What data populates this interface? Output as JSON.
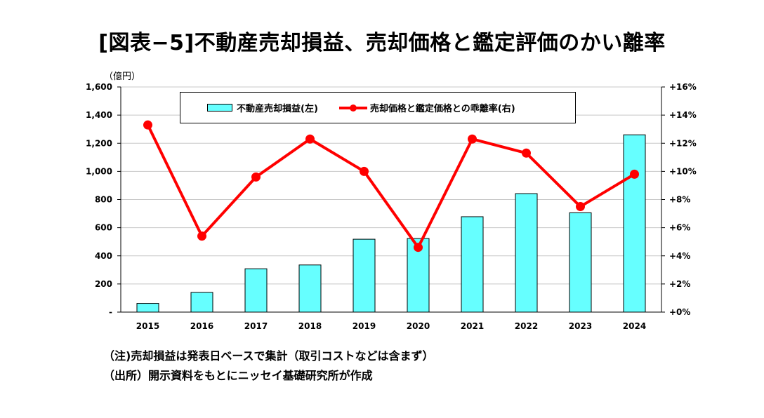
{
  "title": "[図表−5]不動産売却損益、売却価格と鑑定評価のかい離率",
  "chart_data": {
    "type": "bar+line",
    "categories": [
      "2015",
      "2016",
      "2017",
      "2018",
      "2019",
      "2020",
      "2021",
      "2022",
      "2023",
      "2024"
    ],
    "y_left": {
      "unit_label": "（億円）",
      "range": [
        0,
        1600
      ],
      "ticks": [
        "-",
        "200",
        "400",
        "600",
        "800",
        "1,000",
        "1,200",
        "1,400",
        "1,600"
      ]
    },
    "y_right": {
      "range": [
        0,
        16
      ],
      "ticks": [
        "+0%",
        "+2%",
        "+4%",
        "+6%",
        "+8%",
        "+10%",
        "+12%",
        "+14%",
        "+16%"
      ]
    },
    "series": [
      {
        "name": "不動産売却損益(左)",
        "kind": "bar",
        "axis": "left",
        "color": "#66ffff",
        "values": [
          62,
          140,
          308,
          335,
          518,
          523,
          678,
          842,
          706,
          1260
        ]
      },
      {
        "name": "売却価格と鑑定価格との乖離率(右)",
        "kind": "line",
        "axis": "right",
        "color": "#ff0000",
        "values": [
          13.3,
          5.4,
          9.6,
          12.3,
          10.0,
          4.6,
          12.3,
          11.3,
          7.5,
          9.8
        ]
      }
    ],
    "legend": "top-center",
    "grid": "horizontal"
  },
  "notes": [
    "（注)売却損益は発表日ベースで集計（取引コストなどは含まず）",
    "（出所）開示資料をもとにニッセイ基礎研究所が作成"
  ]
}
